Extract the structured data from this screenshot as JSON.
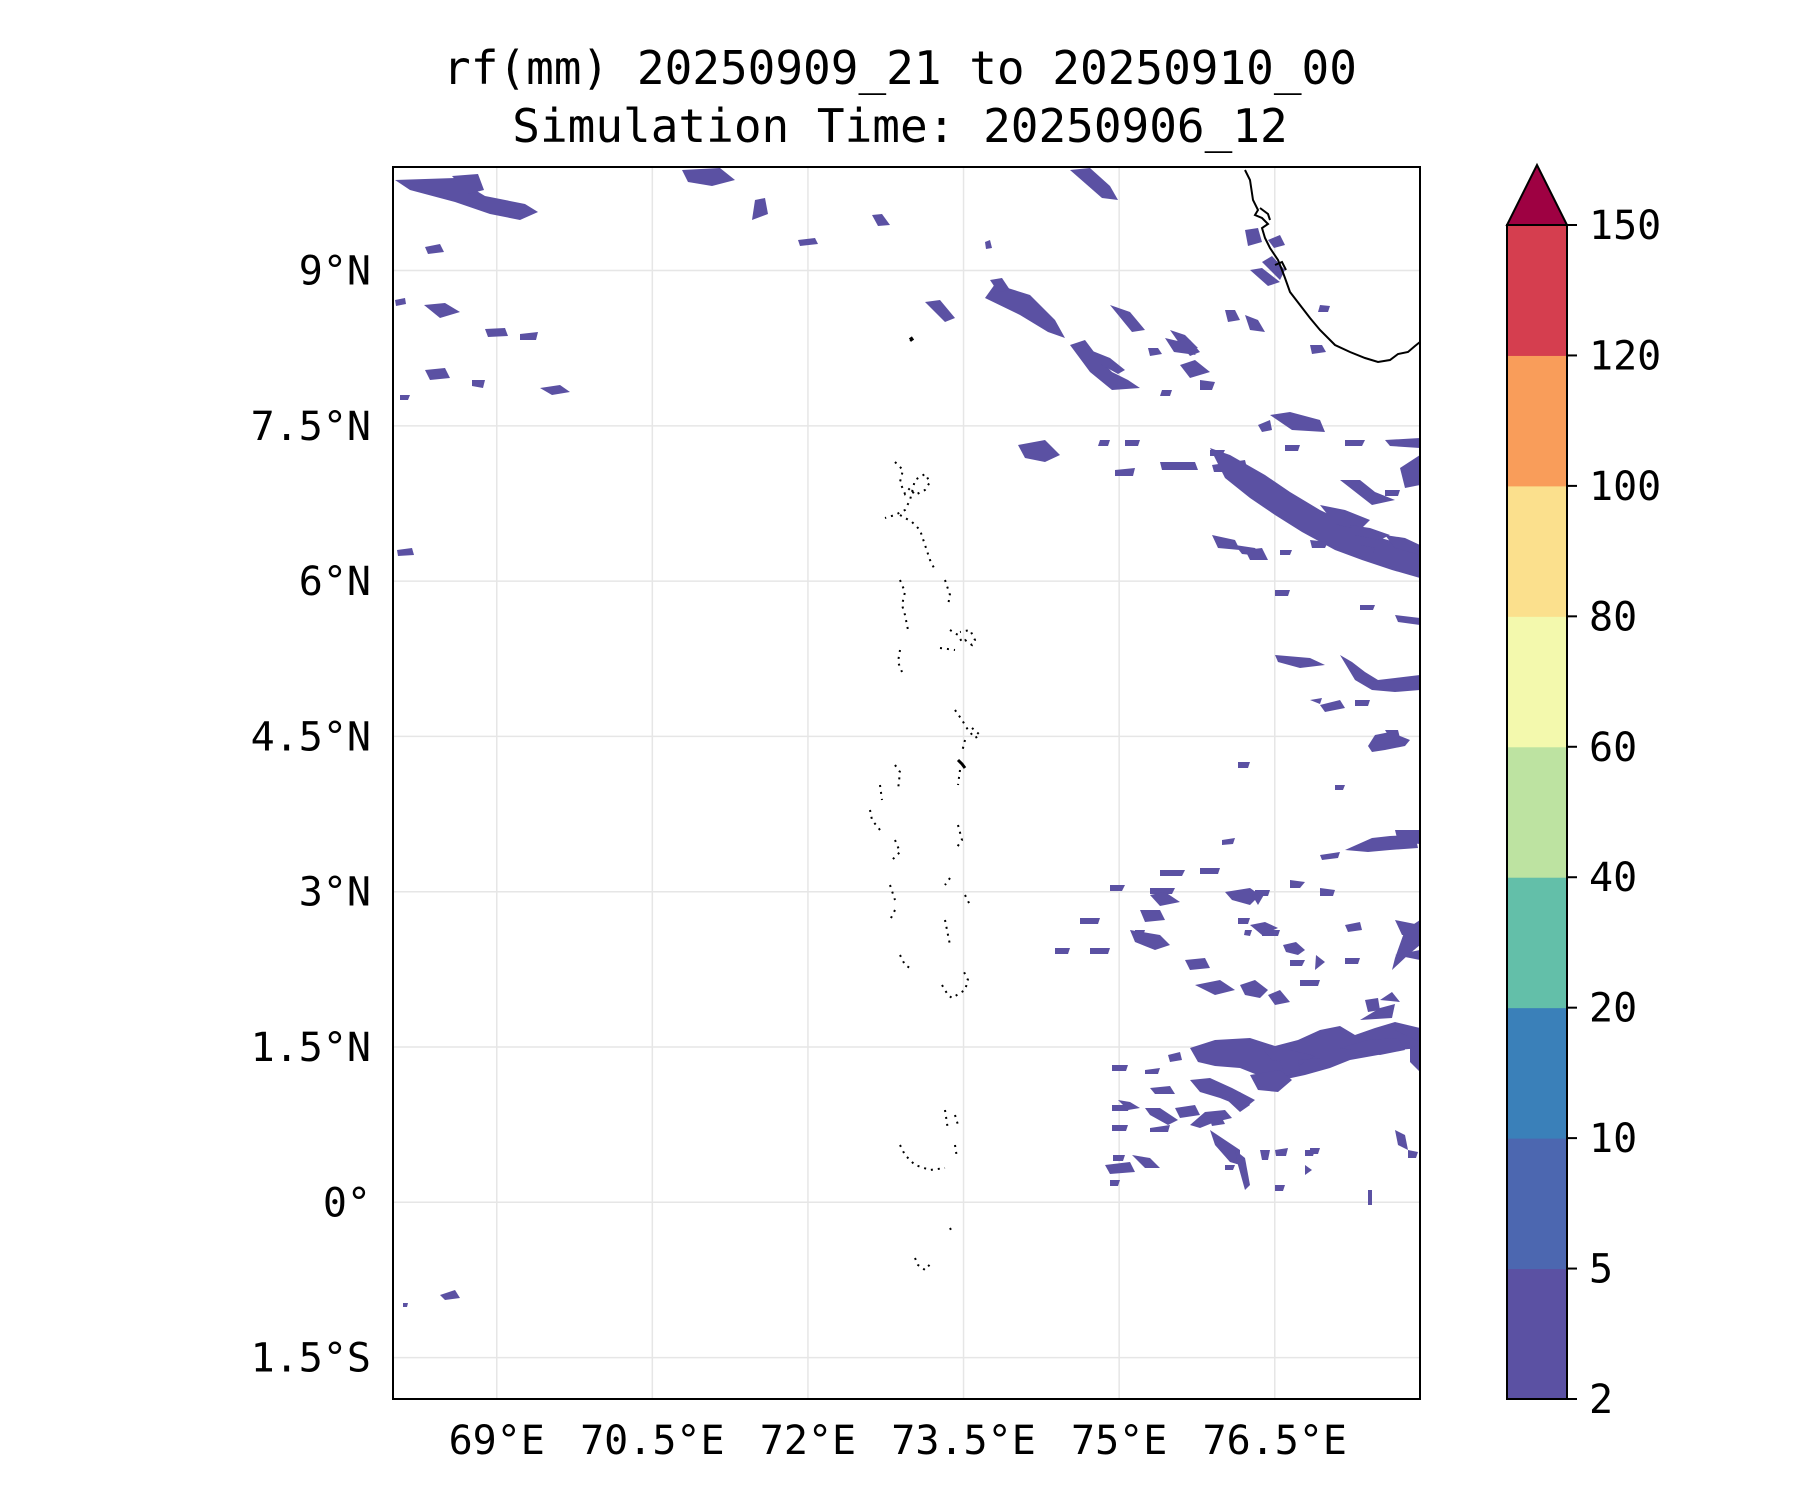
{
  "title": {
    "line1": "rf(mm) 20250909_21 to 20250910_00",
    "line2": "Simulation Time: 20250906_12"
  },
  "map": {
    "lon_range": [
      68.0,
      77.9
    ],
    "lat_range": [
      -1.9,
      10.0
    ],
    "lon_ticks": [
      {
        "value": 69.0,
        "label": "69°E"
      },
      {
        "value": 70.5,
        "label": "70.5°E"
      },
      {
        "value": 72.0,
        "label": "72°E"
      },
      {
        "value": 73.5,
        "label": "73.5°E"
      },
      {
        "value": 75.0,
        "label": "75°E"
      },
      {
        "value": 76.5,
        "label": "76.5°E"
      }
    ],
    "lat_ticks": [
      {
        "value": 9.0,
        "label": "9°N"
      },
      {
        "value": 7.5,
        "label": "7.5°N"
      },
      {
        "value": 6.0,
        "label": "6°N"
      },
      {
        "value": 4.5,
        "label": "4.5°N"
      },
      {
        "value": 3.0,
        "label": "3°N"
      },
      {
        "value": 1.5,
        "label": "1.5°N"
      },
      {
        "value": 0.0,
        "label": "0°"
      },
      {
        "value": -1.5,
        "label": "1.5°S"
      }
    ],
    "gridlines": true,
    "rain_color": "#5b51a3",
    "coastline_color": "#000000"
  },
  "colorbar": {
    "levels": [
      "2",
      "5",
      "10",
      "20",
      "40",
      "60",
      "80",
      "100",
      "120",
      "150"
    ],
    "colors": [
      "#5b51a3",
      "#4c67b0",
      "#3a80b9",
      "#63bfa9",
      "#bde3a1",
      "#f3f9ad",
      "#fbe08d",
      "#f99d5a",
      "#d53e4f"
    ],
    "extend_color": "#9e0142"
  }
}
